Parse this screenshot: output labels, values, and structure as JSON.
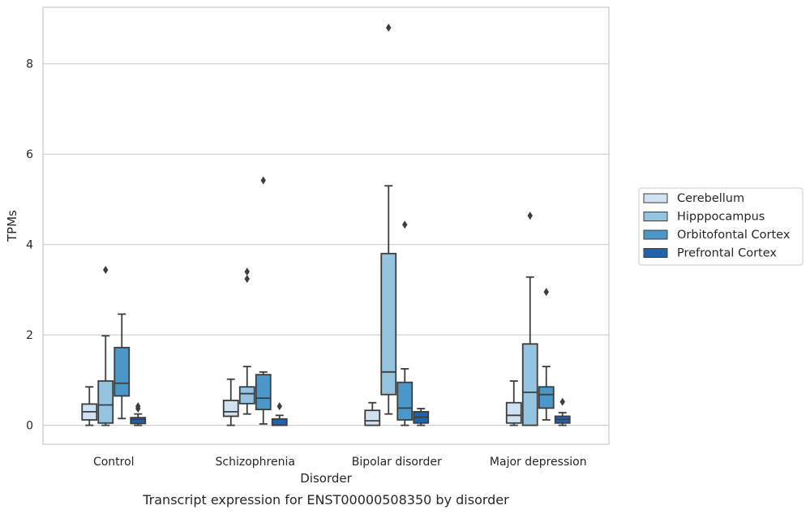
{
  "chart_data": {
    "type": "box",
    "title": "",
    "caption": "Transcript expression for ENST00000508350 by disorder",
    "xlabel": "Disorder",
    "ylabel": "TPMs",
    "ylim": [
      -0.42,
      9.25
    ],
    "yticks": [
      0,
      2,
      4,
      6,
      8
    ],
    "grid": "horizontal",
    "legend_placement": "right",
    "categories": [
      "Control",
      "Schizophrenia",
      "Bipolar disorder",
      "Major depression"
    ],
    "series": [
      {
        "name": "Cerebellum",
        "color": "#d0e1f2",
        "boxes": [
          {
            "whislo": 0.0,
            "q1": 0.12,
            "med": 0.3,
            "q3": 0.47,
            "whishi": 0.85,
            "fliers": []
          },
          {
            "whislo": 0.0,
            "q1": 0.2,
            "med": 0.3,
            "q3": 0.55,
            "whishi": 1.02,
            "fliers": []
          },
          {
            "whislo": 0.0,
            "q1": 0.0,
            "med": 0.1,
            "q3": 0.33,
            "whishi": 0.5,
            "fliers": []
          },
          {
            "whislo": 0.0,
            "q1": 0.05,
            "med": 0.22,
            "q3": 0.5,
            "whishi": 0.98,
            "fliers": []
          }
        ]
      },
      {
        "name": "Hipppocampus",
        "color": "#94c4df",
        "boxes": [
          {
            "whislo": 0.0,
            "q1": 0.05,
            "med": 0.45,
            "q3": 0.98,
            "whishi": 1.98,
            "fliers": [
              3.44
            ]
          },
          {
            "whislo": 0.25,
            "q1": 0.48,
            "med": 0.7,
            "q3": 0.85,
            "whishi": 1.3,
            "fliers": [
              3.24,
              3.4
            ]
          },
          {
            "whislo": 0.25,
            "q1": 0.68,
            "med": 1.18,
            "q3": 3.8,
            "whishi": 5.3,
            "fliers": [
              8.8
            ]
          },
          {
            "whislo": 0.0,
            "q1": 0.0,
            "med": 0.73,
            "q3": 1.8,
            "whishi": 3.28,
            "fliers": [
              4.64
            ]
          }
        ]
      },
      {
        "name": "Orbitofontal Cortex",
        "color": "#4a98c9",
        "boxes": [
          {
            "whislo": 0.15,
            "q1": 0.65,
            "med": 0.93,
            "q3": 1.72,
            "whishi": 2.46,
            "fliers": []
          },
          {
            "whislo": 0.03,
            "q1": 0.35,
            "med": 0.6,
            "q3": 1.12,
            "whishi": 1.18,
            "fliers": [
              5.42
            ]
          },
          {
            "whislo": 0.0,
            "q1": 0.12,
            "med": 0.38,
            "q3": 0.95,
            "whishi": 1.25,
            "fliers": [
              4.44
            ]
          },
          {
            "whislo": 0.12,
            "q1": 0.38,
            "med": 0.68,
            "q3": 0.85,
            "whishi": 1.3,
            "fliers": [
              2.95
            ]
          }
        ]
      },
      {
        "name": "Prefrontal Cortex",
        "color": "#2163aa",
        "boxes": [
          {
            "whislo": 0.0,
            "q1": 0.04,
            "med": 0.13,
            "q3": 0.17,
            "whishi": 0.25,
            "fliers": [
              0.37,
              0.42
            ]
          },
          {
            "whislo": 0.0,
            "q1": 0.0,
            "med": 0.0,
            "q3": 0.14,
            "whishi": 0.22,
            "fliers": [
              0.42
            ]
          },
          {
            "whislo": 0.0,
            "q1": 0.05,
            "med": 0.18,
            "q3": 0.3,
            "whishi": 0.37,
            "fliers": []
          },
          {
            "whislo": 0.0,
            "q1": 0.05,
            "med": 0.13,
            "q3": 0.2,
            "whishi": 0.28,
            "fliers": [
              0.52
            ]
          }
        ]
      }
    ]
  }
}
